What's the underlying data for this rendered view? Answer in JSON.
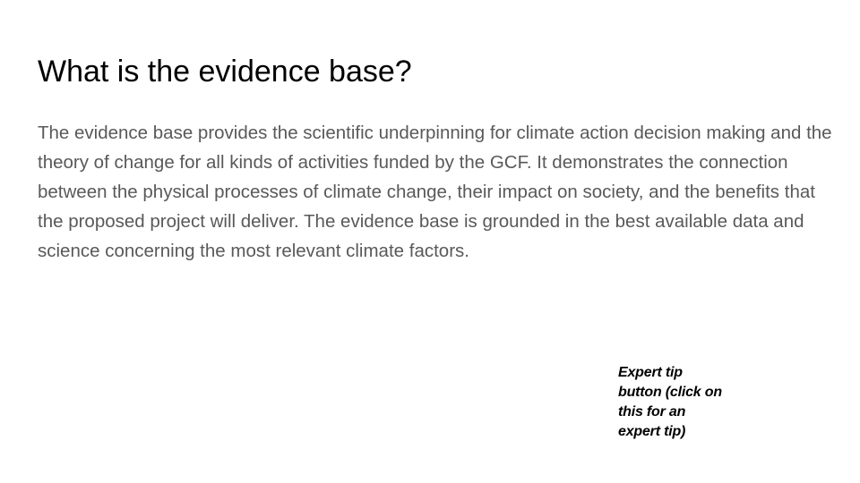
{
  "slide": {
    "title": "What is the evidence base?",
    "body": "The evidence base provides the scientific underpinning for climate action decision making and the theory of change for all kinds of activities funded by the GCF.  It demonstrates the connection between the physical processes of climate change, their impact on society, and the benefits that the proposed project will deliver.  The evidence base is grounded in the best available data and science concerning the most relevant climate factors.",
    "expert_tip_label": "Expert tip\nbutton (click on\nthis for an\nexpert tip)"
  }
}
